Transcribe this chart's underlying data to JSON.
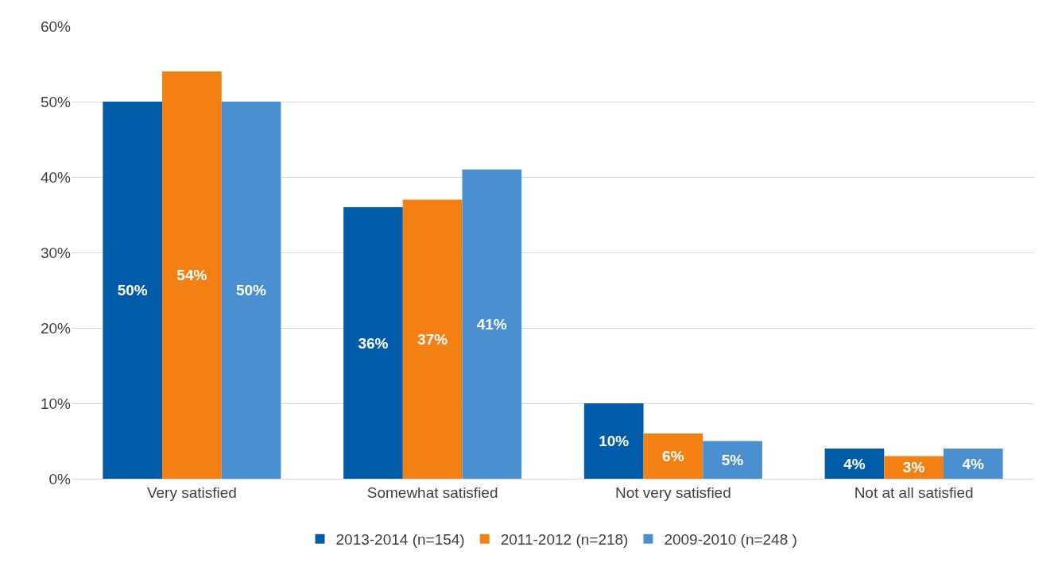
{
  "chart_data": {
    "type": "bar",
    "categories": [
      "Very satisfied",
      "Somewhat satisfied",
      "Not very satisfied",
      "Not at all satisfied"
    ],
    "series": [
      {
        "name": "2013-2014 (n=154)",
        "color": "#005ba9",
        "values": [
          50,
          36,
          10,
          4
        ],
        "value_labels": [
          "50%",
          "36%",
          "10%",
          "4%"
        ]
      },
      {
        "name": "2011-2012 (n=218)",
        "color": "#f28012",
        "values": [
          54,
          37,
          6,
          3
        ],
        "value_labels": [
          "54%",
          "37%",
          "6%",
          "3%"
        ]
      },
      {
        "name": "2009-2010 (n=248 )",
        "color": "#4a90d0",
        "values": [
          50,
          41,
          5,
          4
        ],
        "value_labels": [
          "50%",
          "41%",
          "5%",
          "4%"
        ]
      }
    ],
    "ylim": [
      0,
      60
    ],
    "yticks": [
      {
        "value": 0,
        "label": "0%"
      },
      {
        "value": 10,
        "label": "10%"
      },
      {
        "value": 20,
        "label": "20%"
      },
      {
        "value": 30,
        "label": "30%"
      },
      {
        "value": 40,
        "label": "40%"
      },
      {
        "value": 50,
        "label": "50%"
      },
      {
        "value": 60,
        "label": "60%"
      }
    ],
    "grid": "y",
    "legend": "bottom"
  }
}
